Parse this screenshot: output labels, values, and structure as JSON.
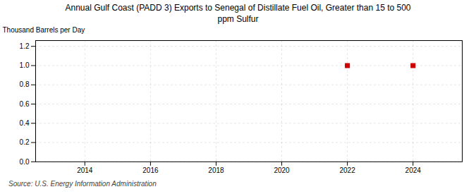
{
  "chart_data": {
    "type": "scatter",
    "title": "Annual Gulf Coast (PADD 3) Exports to Senegal of Distillate Fuel Oil, Greater than 15 to 500\nppm Sulfur",
    "ylabel": "Thousand Barrels per Day",
    "caption": "Source: U.S. Energy Information Administration",
    "x": [
      2022,
      2024
    ],
    "values": [
      1.0,
      1.0
    ],
    "color": "#cc0000",
    "marker": "square",
    "xlim": [
      2012.5,
      2025.5
    ],
    "ylim": [
      0.0,
      1.26
    ],
    "xticks": [
      2014,
      2016,
      2018,
      2020,
      2022,
      2024
    ],
    "yticks": [
      {
        "value": 0.0,
        "label": "0.0"
      },
      0.2,
      0.4,
      0.6,
      0.8,
      {
        "value": 1.0,
        "label": "1.0"
      },
      1.2
    ],
    "grid": true
  }
}
